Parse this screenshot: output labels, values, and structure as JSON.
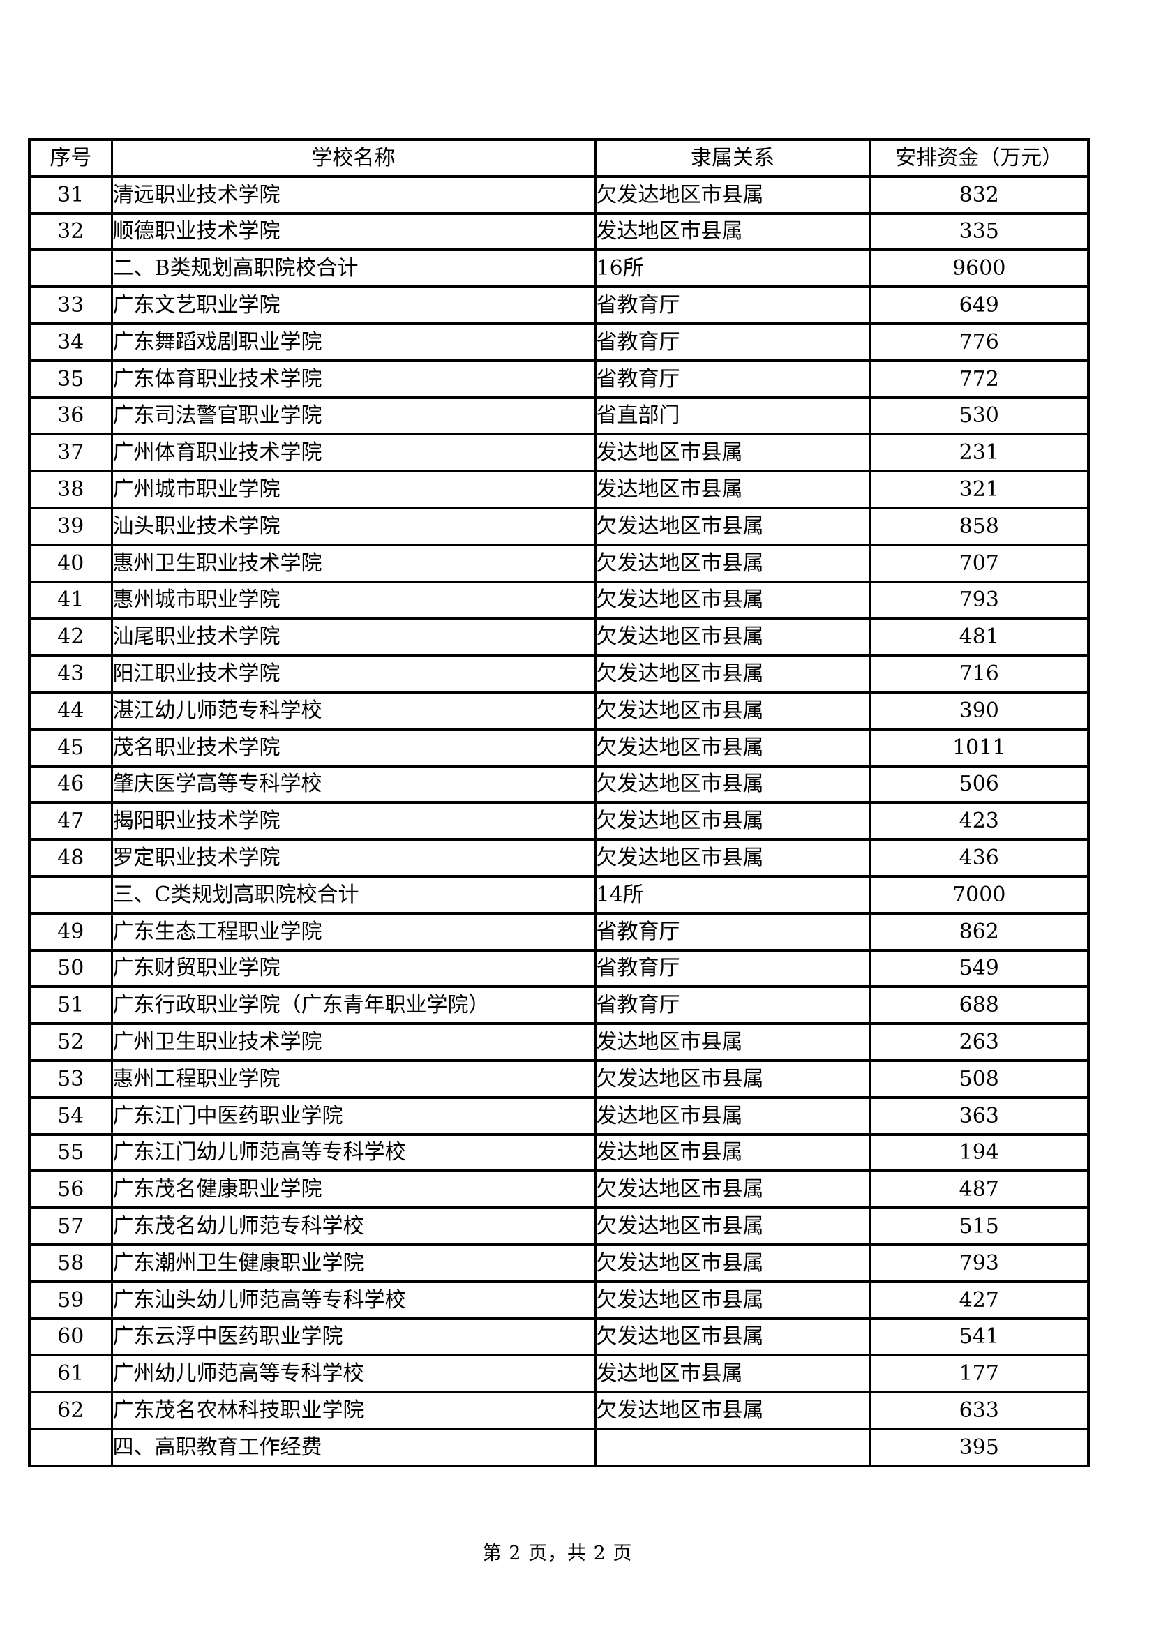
{
  "page": {
    "footer": "第 2 页，共 2 页"
  },
  "table": {
    "headers": [
      "序号",
      "学校名称",
      "隶属关系",
      "安排资金（万元）"
    ],
    "rows": [
      {
        "no": "31",
        "school": "清远职业技术学院",
        "affiliation": "欠发达地区市县属",
        "amount": "832",
        "section": false
      },
      {
        "no": "32",
        "school": "顺德职业技术学院",
        "affiliation": "发达地区市县属",
        "amount": "335",
        "section": false
      },
      {
        "no": "",
        "school": "二、B类规划高职院校合计",
        "affiliation": "16所",
        "amount": "9600",
        "section": true
      },
      {
        "no": "33",
        "school": "广东文艺职业学院",
        "affiliation": "省教育厅",
        "amount": "649",
        "section": false
      },
      {
        "no": "34",
        "school": "广东舞蹈戏剧职业学院",
        "affiliation": "省教育厅",
        "amount": "776",
        "section": false
      },
      {
        "no": "35",
        "school": "广东体育职业技术学院",
        "affiliation": "省教育厅",
        "amount": "772",
        "section": false
      },
      {
        "no": "36",
        "school": "广东司法警官职业学院",
        "affiliation": "省直部门",
        "amount": "530",
        "section": false
      },
      {
        "no": "37",
        "school": "广州体育职业技术学院",
        "affiliation": "发达地区市县属",
        "amount": "231",
        "section": false
      },
      {
        "no": "38",
        "school": "广州城市职业学院",
        "affiliation": "发达地区市县属",
        "amount": "321",
        "section": false
      },
      {
        "no": "39",
        "school": "汕头职业技术学院",
        "affiliation": "欠发达地区市县属",
        "amount": "858",
        "section": false
      },
      {
        "no": "40",
        "school": "惠州卫生职业技术学院",
        "affiliation": "欠发达地区市县属",
        "amount": "707",
        "section": false
      },
      {
        "no": "41",
        "school": "惠州城市职业学院",
        "affiliation": "欠发达地区市县属",
        "amount": "793",
        "section": false
      },
      {
        "no": "42",
        "school": "汕尾职业技术学院",
        "affiliation": "欠发达地区市县属",
        "amount": "481",
        "section": false
      },
      {
        "no": "43",
        "school": "阳江职业技术学院",
        "affiliation": "欠发达地区市县属",
        "amount": "716",
        "section": false
      },
      {
        "no": "44",
        "school": "湛江幼儿师范专科学校",
        "affiliation": "欠发达地区市县属",
        "amount": "390",
        "section": false
      },
      {
        "no": "45",
        "school": "茂名职业技术学院",
        "affiliation": "欠发达地区市县属",
        "amount": "1011",
        "section": false
      },
      {
        "no": "46",
        "school": "肇庆医学高等专科学校",
        "affiliation": "欠发达地区市县属",
        "amount": "506",
        "section": false
      },
      {
        "no": "47",
        "school": "揭阳职业技术学院",
        "affiliation": "欠发达地区市县属",
        "amount": "423",
        "section": false
      },
      {
        "no": "48",
        "school": "罗定职业技术学院",
        "affiliation": "欠发达地区市县属",
        "amount": "436",
        "section": false
      },
      {
        "no": "",
        "school": "三、C类规划高职院校合计",
        "affiliation": "14所",
        "amount": "7000",
        "section": true
      },
      {
        "no": "49",
        "school": "广东生态工程职业学院",
        "affiliation": "省教育厅",
        "amount": "862",
        "section": false
      },
      {
        "no": "50",
        "school": "广东财贸职业学院",
        "affiliation": "省教育厅",
        "amount": "549",
        "section": false
      },
      {
        "no": "51",
        "school": "广东行政职业学院（广东青年职业学院）",
        "affiliation": "省教育厅",
        "amount": "688",
        "section": false
      },
      {
        "no": "52",
        "school": "广州卫生职业技术学院",
        "affiliation": "发达地区市县属",
        "amount": "263",
        "section": false
      },
      {
        "no": "53",
        "school": "惠州工程职业学院",
        "affiliation": "欠发达地区市县属",
        "amount": "508",
        "section": false
      },
      {
        "no": "54",
        "school": "广东江门中医药职业学院",
        "affiliation": "发达地区市县属",
        "amount": "363",
        "section": false
      },
      {
        "no": "55",
        "school": "广东江门幼儿师范高等专科学校",
        "affiliation": "发达地区市县属",
        "amount": "194",
        "section": false
      },
      {
        "no": "56",
        "school": "广东茂名健康职业学院",
        "affiliation": "欠发达地区市县属",
        "amount": "487",
        "section": false
      },
      {
        "no": "57",
        "school": "广东茂名幼儿师范专科学校",
        "affiliation": "欠发达地区市县属",
        "amount": "515",
        "section": false
      },
      {
        "no": "58",
        "school": "广东潮州卫生健康职业学院",
        "affiliation": "欠发达地区市县属",
        "amount": "793",
        "section": false
      },
      {
        "no": "59",
        "school": "广东汕头幼儿师范高等专科学校",
        "affiliation": "欠发达地区市县属",
        "amount": "427",
        "section": false
      },
      {
        "no": "60",
        "school": "广东云浮中医药职业学院",
        "affiliation": "欠发达地区市县属",
        "amount": "541",
        "section": false
      },
      {
        "no": "61",
        "school": "广州幼儿师范高等专科学校",
        "affiliation": "发达地区市县属",
        "amount": "177",
        "section": false
      },
      {
        "no": "62",
        "school": "广东茂名农林科技职业学院",
        "affiliation": "欠发达地区市县属",
        "amount": "633",
        "section": false
      },
      {
        "no": "",
        "school": "四、高职教育工作经费",
        "affiliation": "",
        "amount": "395",
        "section": true
      }
    ]
  }
}
